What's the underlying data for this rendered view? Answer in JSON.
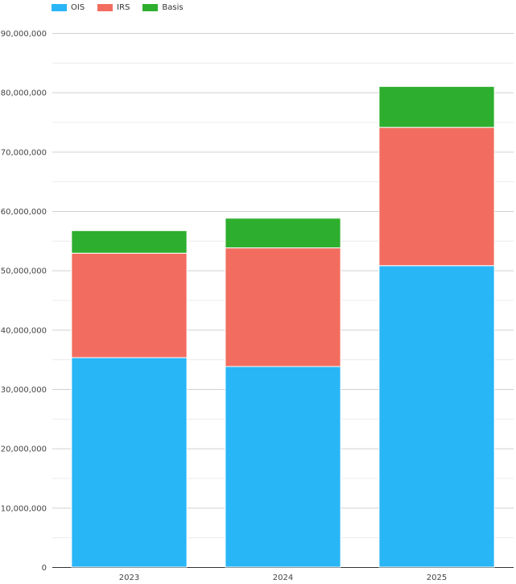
{
  "chart_data": {
    "type": "bar",
    "stacked": true,
    "categories": [
      "2023",
      "2024",
      "2025"
    ],
    "series": [
      {
        "name": "OIS",
        "color": "#29b6f6",
        "values": [
          35300000,
          33800000,
          50800000
        ]
      },
      {
        "name": "IRS",
        "color": "#f26d5f",
        "values": [
          17600000,
          20000000,
          23300000
        ]
      },
      {
        "name": "Basis",
        "color": "#2eae2e",
        "values": [
          3800000,
          5000000,
          6900000
        ]
      }
    ],
    "ylim": [
      0,
      90000000
    ],
    "yticks": [
      "0",
      "10,000,000",
      "20,000,000",
      "30,000,000",
      "40,000,000",
      "50,000,000",
      "60,000,000",
      "70,000,000",
      "80,000,000",
      "90,000,000"
    ],
    "grid": true,
    "legend": "top-left",
    "title": "",
    "xlabel": "",
    "ylabel": ""
  }
}
